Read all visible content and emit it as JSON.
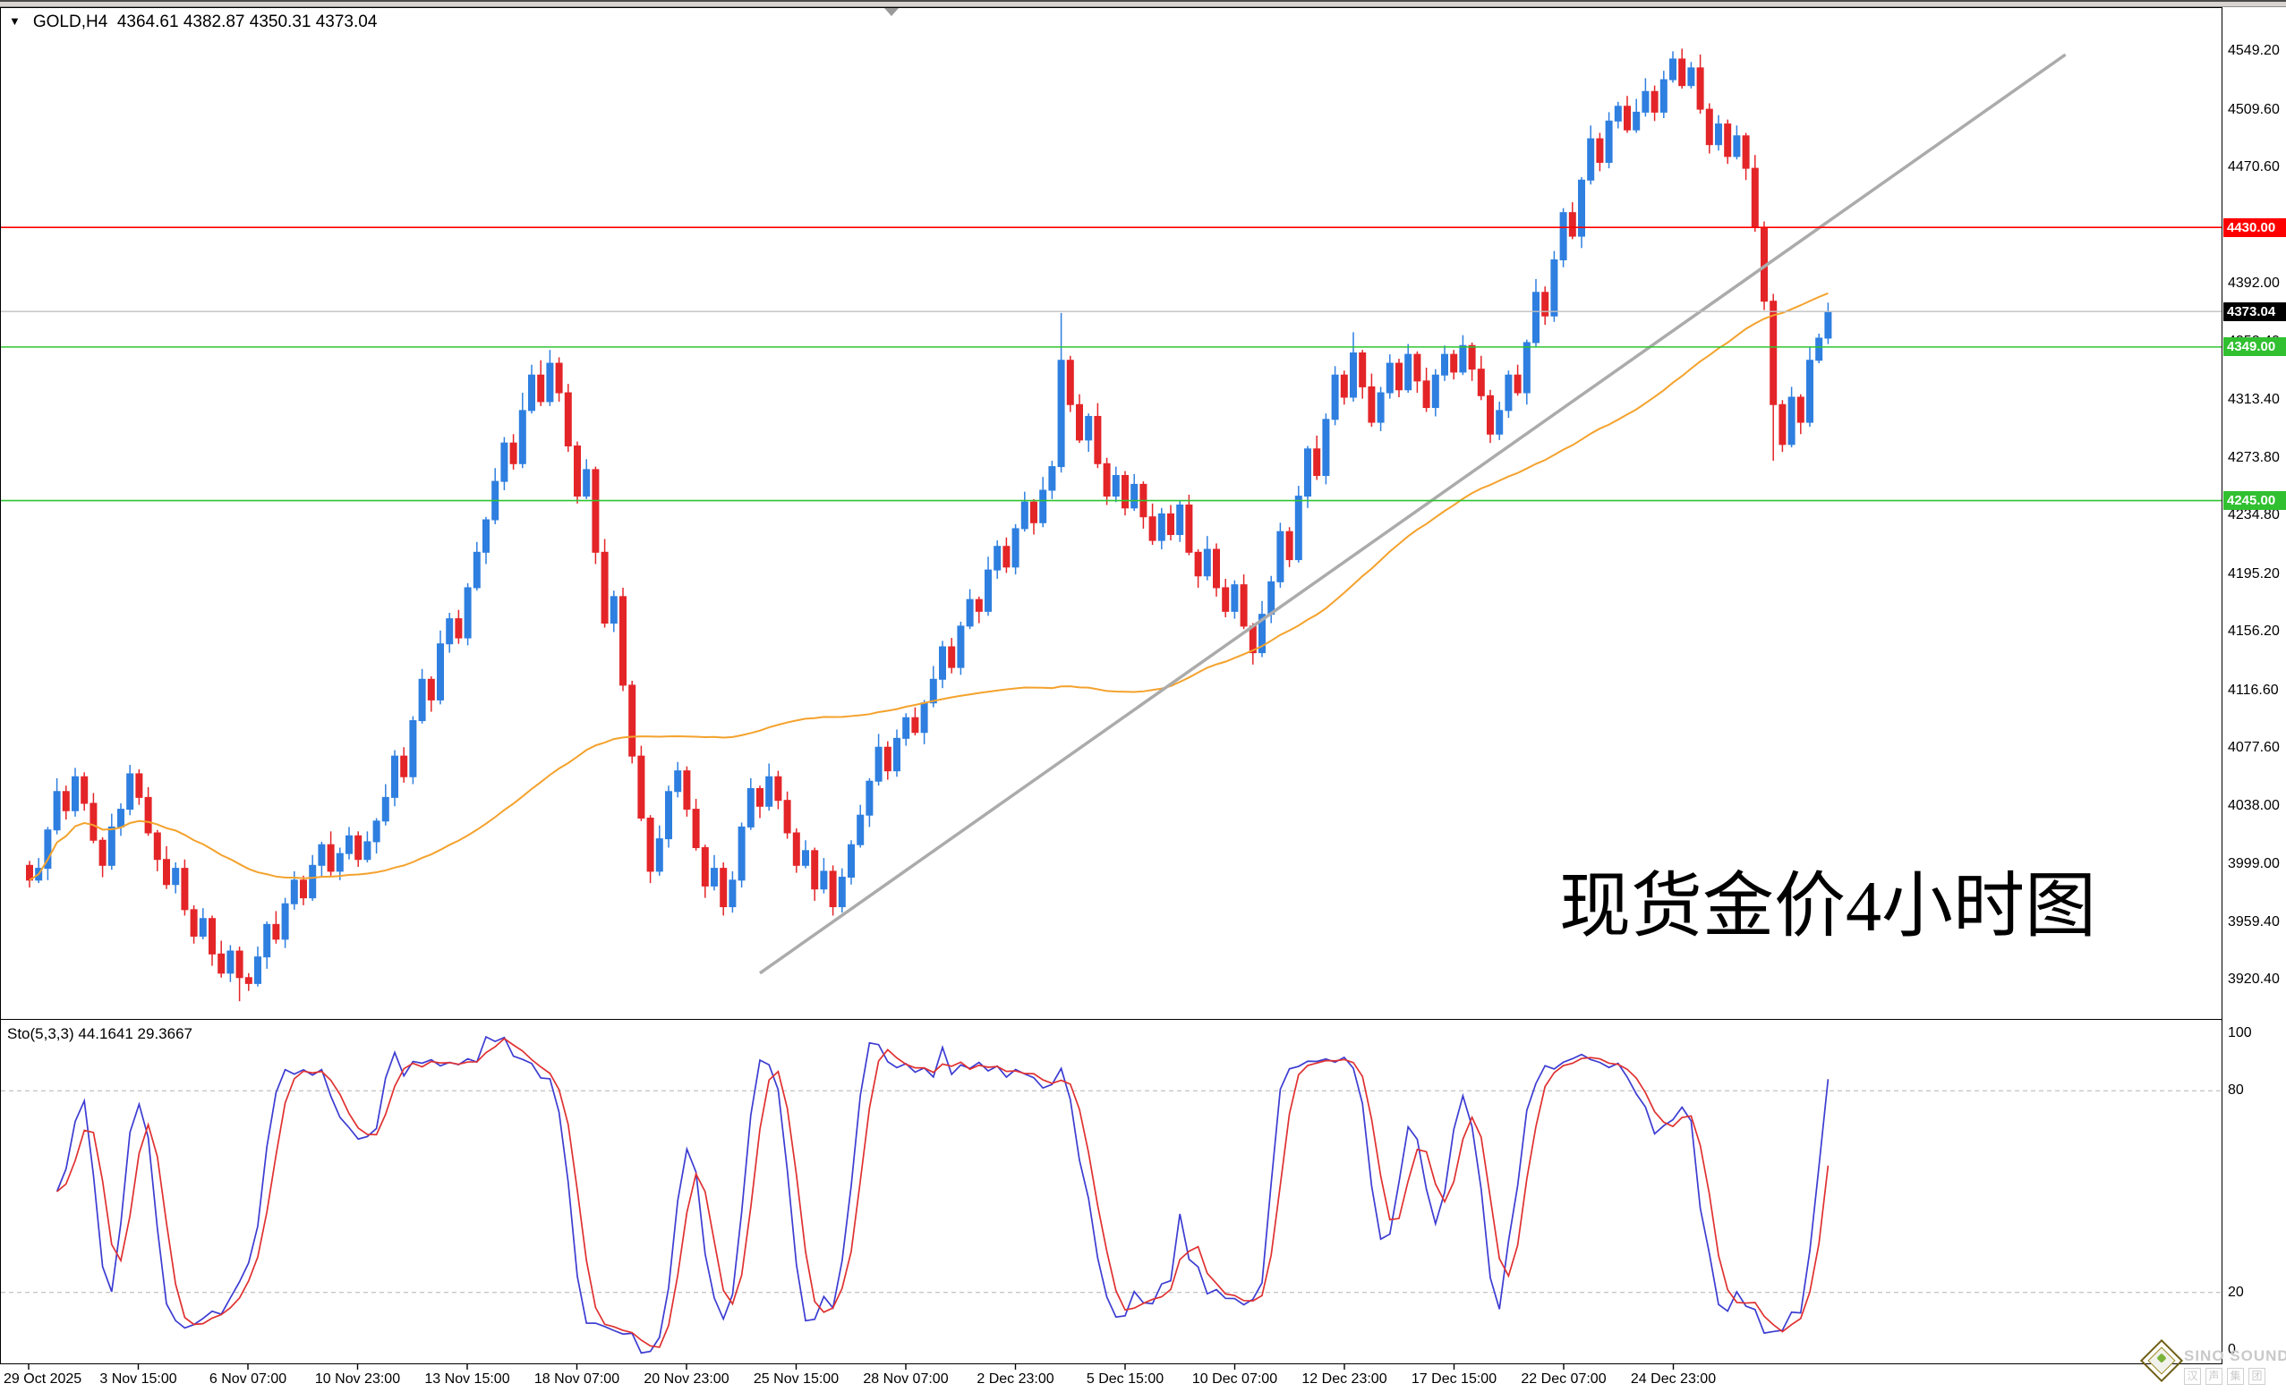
{
  "header": {
    "dropdown_icon": "▼",
    "symbol": "GOLD,H4",
    "ohlc": "4364.61 4382.87 4350.31 4373.04"
  },
  "annotation": {
    "text": "现货金价4小时图"
  },
  "sto_pane": {
    "label": "Sto(5,3,3) 44.1641 29.3667",
    "levels": [
      100,
      80,
      20,
      0
    ],
    "dashed_levels": [
      80,
      20
    ],
    "k_color": "#3c3cd2",
    "d_color": "#e03030"
  },
  "watermark": {
    "line1": "SINO SOUND",
    "line2": "汉声集团"
  },
  "colors": {
    "bull": "#2e7fe0",
    "bear": "#e42528",
    "ma": "#f4a22d",
    "trendline": "#ababab",
    "resistance_red": "#ff0000",
    "support_green": "#2fc42f",
    "bid_gray": "#c0c0c0",
    "badge_red": "#ff0000",
    "badge_green": "#30c030",
    "badge_black": "#000000"
  },
  "chart_data": {
    "type": "candlestick",
    "symbol": "GOLD",
    "timeframe": "H4",
    "price_axis_ticks": [
      4549.2,
      4509.6,
      4470.6,
      4431.0,
      4392.0,
      4352.4,
      4313.4,
      4273.8,
      4234.8,
      4195.2,
      4156.2,
      4116.6,
      4077.6,
      4038.0,
      3999.0,
      3959.4,
      3920.4
    ],
    "visible_price_range": [
      3894.0,
      4578.5
    ],
    "date_labels": [
      "29 Oct 2025",
      "3 Nov 15:00",
      "6 Nov 07:00",
      "10 Nov 23:00",
      "13 Nov 15:00",
      "18 Nov 07:00",
      "20 Nov 23:00",
      "25 Nov 15:00",
      "28 Nov 07:00",
      "2 Dec 23:00",
      "5 Dec 15:00",
      "10 Dec 07:00",
      "12 Dec 23:00",
      "17 Dec 15:00",
      "22 Dec 07:00",
      "24 Dec 23:00"
    ],
    "open_first": 3998,
    "closes": [
      3988,
      3996,
      4022,
      4048,
      4035,
      4058,
      4040,
      4015,
      3998,
      4024,
      4036,
      4060,
      4044,
      4020,
      4002,
      3985,
      3996,
      3968,
      3950,
      3962,
      3938,
      3925,
      3940,
      3922,
      3918,
      3936,
      3958,
      3948,
      3972,
      3988,
      3976,
      3998,
      4012,
      3994,
      4006,
      4018,
      4002,
      4014,
      4028,
      4044,
      4072,
      4058,
      4096,
      4124,
      4110,
      4148,
      4165,
      4152,
      4186,
      4210,
      4232,
      4258,
      4284,
      4270,
      4306,
      4330,
      4312,
      4338,
      4318,
      4282,
      4248,
      4266,
      4210,
      4162,
      4180,
      4120,
      4072,
      4030,
      3994,
      4016,
      4048,
      4062,
      4036,
      4010,
      3984,
      3996,
      3970,
      3988,
      4024,
      4050,
      4038,
      4058,
      4042,
      4020,
      3998,
      4008,
      3982,
      3994,
      3970,
      3990,
      4012,
      4032,
      4055,
      4078,
      4062,
      4084,
      4098,
      4088,
      4108,
      4124,
      4146,
      4132,
      4160,
      4178,
      4170,
      4198,
      4214,
      4200,
      4226,
      4244,
      4230,
      4252,
      4268,
      4340,
      4310,
      4286,
      4302,
      4270,
      4248,
      4262,
      4240,
      4256,
      4234,
      4218,
      4236,
      4222,
      4242,
      4210,
      4194,
      4212,
      4186,
      4170,
      4188,
      4160,
      4142,
      4168,
      4190,
      4224,
      4205,
      4248,
      4280,
      4262,
      4300,
      4330,
      4315,
      4345,
      4322,
      4298,
      4318,
      4338,
      4320,
      4344,
      4326,
      4308,
      4330,
      4344,
      4332,
      4350,
      4334,
      4316,
      4290,
      4306,
      4330,
      4318,
      4352,
      4386,
      4370,
      4408,
      4440,
      4424,
      4462,
      4490,
      4474,
      4502,
      4512,
      4496,
      4508,
      4522,
      4508,
      4530,
      4544,
      4526,
      4538,
      4510,
      4486,
      4500,
      4478,
      4492,
      4470,
      4430,
      4380,
      4310,
      4283,
      4315,
      4298,
      4340,
      4355,
      4373.04
    ],
    "wick_hi_pattern": [
      3,
      7,
      2,
      9,
      4,
      6
    ],
    "wick_lo_pattern": [
      5,
      2,
      8,
      3,
      6,
      4
    ],
    "wick_overrides": {
      "23": [
        3,
        16
      ],
      "54": [
        12,
        3
      ],
      "56": [
        10,
        3
      ],
      "113": [
        32,
        4
      ],
      "145": [
        14,
        3
      ],
      "176": [
        9,
        2
      ],
      "180": [
        5.2,
        2
      ],
      "182": [
        4,
        2
      ],
      "191": [
        5,
        38
      ],
      "196": [
        3,
        2
      ]
    },
    "ma_period": 60,
    "stochastic": {
      "k_period": 5,
      "slowing": 3,
      "d_period": 3,
      "last_k": 44.1641,
      "last_d": 29.3667
    },
    "horizontal_lines": [
      {
        "price": 4430.0,
        "color_key": "resistance_red",
        "badge": "4430.00",
        "badge_color_key": "badge_red"
      },
      {
        "price": 4349.0,
        "color_key": "support_green",
        "badge": "4349.00",
        "badge_color_key": "badge_green"
      },
      {
        "price": 4245.0,
        "color_key": "support_green",
        "badge": "4245.00",
        "badge_color_key": "badge_green"
      }
    ],
    "bid_line": {
      "price": 4373.04,
      "badge": "4373.04",
      "badge_color_key": "badge_black",
      "color_key": "bid_gray"
    },
    "trendline": {
      "bar1": 80,
      "price1": 3925,
      "bar2": 223,
      "price2": 4547
    }
  }
}
